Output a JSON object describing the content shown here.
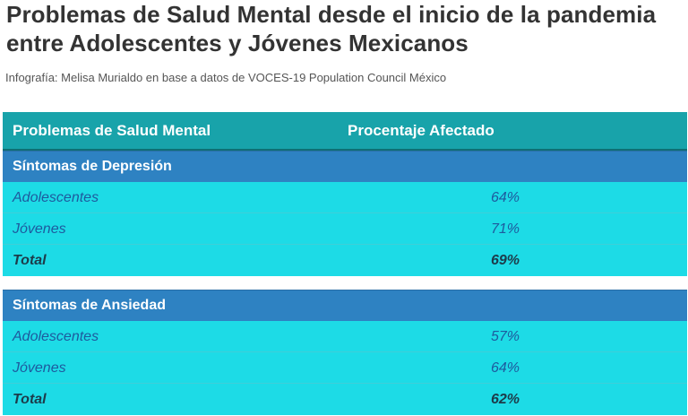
{
  "title": "Problemas de Salud Mental desde el inicio de la pandemia entre Adolescentes y Jóvenes Mexicanos",
  "subtitle": "Infografía: Melisa Murialdo en base a datos de VOCES-19 Population Council México",
  "colors": {
    "header_bg": "#18a3aa",
    "group_bg": "#2e82c2",
    "row_bg": "#1ddbe6",
    "row_text": "#1e5a9e",
    "total_text": "#1d3b4a"
  },
  "chart_data": {
    "type": "table",
    "columns": [
      "Problemas de Salud Mental",
      "Procentaje Afectado"
    ],
    "groups": [
      {
        "name": "Síntomas de Depresión",
        "rows": [
          {
            "label": "Adolescentes",
            "value": "64%"
          },
          {
            "label": "Jóvenes",
            "value": "71%"
          },
          {
            "label": "Total",
            "value": "69%"
          }
        ]
      },
      {
        "name": "Síntomas de Ansiedad",
        "rows": [
          {
            "label": "Adolescentes",
            "value": "57%"
          },
          {
            "label": "Jóvenes",
            "value": "64%"
          },
          {
            "label": "Total",
            "value": "62%"
          }
        ]
      }
    ]
  }
}
